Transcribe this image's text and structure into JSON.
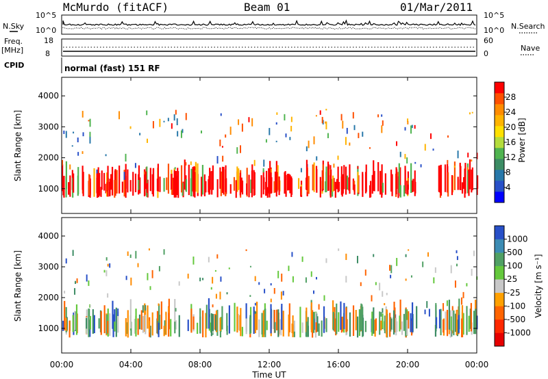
{
  "header": {
    "station": "McMurdo (fitACF)",
    "beam": "Beam 01",
    "date": "01/Mar/2011"
  },
  "status_panel": {
    "left_label_top": "N.Sky",
    "right_label_top": "N.Search",
    "log_ticks": [
      "10^5",
      "10^0"
    ],
    "freq_label_line1": "Freq.",
    "freq_label_line2": "[MHz]",
    "freq_ticks": [
      "18",
      "8"
    ],
    "nave_label": "Nave",
    "nave_ticks": [
      "60",
      "0"
    ],
    "cpid_label": "CPID",
    "cpid_value": "normal (fast) 151 RF"
  },
  "chart_data": [
    {
      "type": "heatmap",
      "name": "power",
      "ylabel": "Slant Range [km]",
      "xlabel": "",
      "y_ticks": [
        "1000",
        "2000",
        "3000",
        "4000"
      ],
      "ylim": [
        200,
        4600
      ],
      "xlim_hours": [
        0,
        24
      ],
      "colorbar": {
        "label": "Power [dB]",
        "ticks": [
          "28",
          "24",
          "20",
          "16",
          "12",
          "8",
          "4"
        ],
        "colors": [
          "#ff0000",
          "#ff5000",
          "#ff8c00",
          "#ffb400",
          "#ffe000",
          "#b4dc3c",
          "#50b450",
          "#3c8c64",
          "#2878aa",
          "#2850c8",
          "#0000ff"
        ]
      }
    },
    {
      "type": "heatmap",
      "name": "velocity",
      "ylabel": "Slant Range [km]",
      "xlabel": "Time UT",
      "y_ticks": [
        "1000",
        "2000",
        "3000",
        "4000"
      ],
      "ylim": [
        200,
        4600
      ],
      "xlim_hours": [
        0,
        24
      ],
      "x_ticks": [
        "00:00",
        "04:00",
        "08:00",
        "12:00",
        "16:00",
        "20:00",
        "00:00"
      ],
      "colorbar": {
        "label": "Velocity [m s⁻¹]",
        "ticks": [
          "1000",
          "500",
          "100",
          "25",
          "-25",
          "-100",
          "-500",
          "-1000"
        ],
        "colors": [
          "#2850c8",
          "#3c8cb4",
          "#50a064",
          "#64c83c",
          "#c8c8c8",
          "#ffa000",
          "#ff6400",
          "#ff2800",
          "#e60000"
        ]
      }
    }
  ]
}
